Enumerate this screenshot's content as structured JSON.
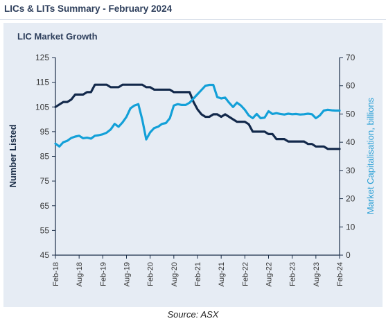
{
  "header": {
    "title": "LICs & LITs Summary - February 2024"
  },
  "footer": {
    "source": "Source: ASX"
  },
  "colors": {
    "number_listed": "#13294b",
    "market_cap": "#13a0d8",
    "panel_bg": "#e6ecf4",
    "axis": "#1a2d47"
  },
  "chart_data": {
    "type": "line",
    "title": "LIC Market Growth",
    "ylabel": "Number Listed",
    "y2label": "Market Capitalisation, billions",
    "ylim": [
      45,
      125
    ],
    "y2lim": [
      0,
      70
    ],
    "yticks": [
      "45",
      "55",
      "65",
      "75",
      "85",
      "95",
      "105",
      "115",
      "125"
    ],
    "y2ticks": [
      "0",
      "10",
      "20",
      "30",
      "40",
      "50",
      "60",
      "70"
    ],
    "xlim": [
      0,
      72
    ],
    "xticks": [
      {
        "label": "Feb-18",
        "x": 0
      },
      {
        "label": "Aug-18",
        "x": 6
      },
      {
        "label": "Feb-19",
        "x": 12
      },
      {
        "label": "Aug-19",
        "x": 18
      },
      {
        "label": "Feb-20",
        "x": 24
      },
      {
        "label": "Aug-20",
        "x": 30
      },
      {
        "label": "Feb-21",
        "x": 36
      },
      {
        "label": "Aug-21",
        "x": 42
      },
      {
        "label": "Feb-22",
        "x": 48
      },
      {
        "label": "Aug-22",
        "x": 54
      },
      {
        "label": "Feb-23",
        "x": 60
      },
      {
        "label": "Aug-23",
        "x": 66
      },
      {
        "label": "Feb-24",
        "x": 72
      }
    ],
    "grid": false,
    "series": [
      {
        "name": "Number Listed",
        "axis": "left",
        "values": [
          105,
          106,
          107,
          107,
          108,
          110,
          110,
          110,
          111,
          111,
          114,
          114,
          114,
          114,
          113,
          113,
          113,
          114,
          114,
          114,
          114,
          114,
          114,
          113,
          113,
          112,
          112,
          112,
          112,
          112,
          111,
          111,
          111,
          111,
          111,
          107,
          104,
          102,
          101,
          101,
          102,
          102,
          101,
          102,
          101,
          100,
          99,
          99,
          99,
          98,
          95,
          95,
          95,
          95,
          94,
          94,
          92,
          92,
          92,
          91,
          91,
          91,
          91,
          91,
          90,
          90,
          89,
          89,
          89,
          88,
          88,
          88,
          88
        ]
      },
      {
        "name": "Market Capitalisation",
        "axis": "right",
        "values": [
          39.5,
          38.5,
          40,
          40.5,
          41.5,
          42,
          42.3,
          41.4,
          41.6,
          41.3,
          42.3,
          42.5,
          42.8,
          43.4,
          44.5,
          46.5,
          45.5,
          47,
          49,
          52,
          53,
          53.5,
          48,
          41,
          43.5,
          45,
          45.5,
          46.5,
          46.8,
          48.5,
          53,
          53.5,
          53.2,
          53.2,
          54,
          55.5,
          57,
          58.5,
          60,
          60.3,
          60.3,
          56,
          55.5,
          55.8,
          54,
          52.5,
          54,
          53,
          51.5,
          49.5,
          48.5,
          50,
          48.5,
          48.7,
          51,
          50,
          50.3,
          50,
          49.8,
          50.1,
          49.9,
          50,
          49.8,
          49.9,
          50.1,
          49.9,
          48.5,
          49.5,
          51.2,
          51.5,
          51.3,
          51.2,
          51.2
        ]
      }
    ]
  }
}
